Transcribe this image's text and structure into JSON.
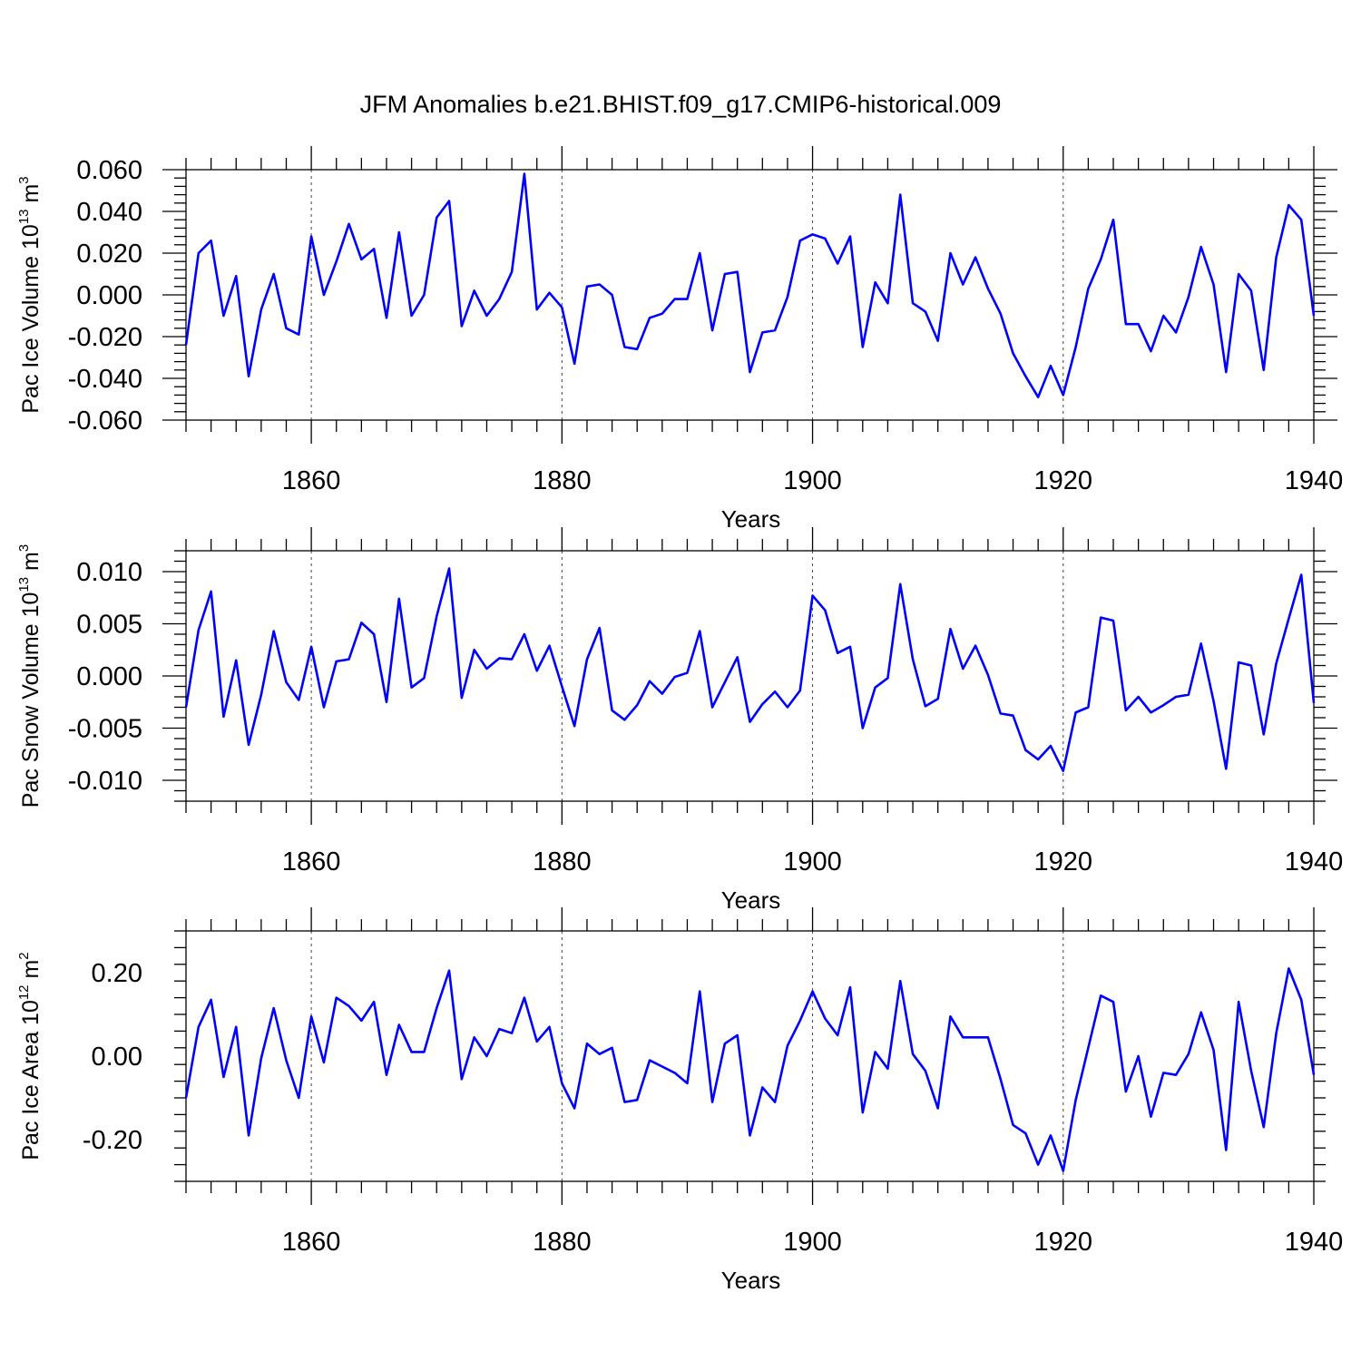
{
  "figure": {
    "title": "JFM Anomalies b.e21.BHIST.f09_g17.CMIP6-historical.009",
    "line_color": "#0000ff"
  },
  "chart_data": [
    {
      "type": "line",
      "name": "Pac Ice Volume",
      "ylabel": {
        "base": "Pac Ice Volume 10",
        "exp": "13",
        "unit": " m",
        "unit_exp": "3"
      },
      "xlabel": "Years",
      "xlim": [
        1850,
        1940
      ],
      "ylim": [
        -0.06,
        0.06
      ],
      "xticks": [
        1860,
        1880,
        1900,
        1920,
        1940
      ],
      "xtick_labels": [
        "1860",
        "1880",
        "1900",
        "1920",
        "1940"
      ],
      "yticks": [
        -0.06,
        -0.04,
        -0.02,
        0.0,
        0.02,
        0.04,
        0.06
      ],
      "ytick_labels": [
        "-0.060",
        "-0.040",
        "-0.020",
        "0.000",
        "0.020",
        "0.040",
        "0.060"
      ],
      "x_start": 1850,
      "values": [
        -0.024,
        0.02,
        0.026,
        -0.01,
        0.009,
        -0.039,
        -0.007,
        0.01,
        -0.016,
        -0.019,
        0.028,
        0.0,
        0.016,
        0.034,
        0.017,
        0.022,
        -0.011,
        0.03,
        -0.01,
        0.0,
        0.037,
        0.045,
        -0.015,
        0.002,
        -0.01,
        -0.002,
        0.011,
        0.058,
        -0.007,
        0.001,
        -0.006,
        -0.033,
        0.004,
        0.005,
        0.0,
        -0.025,
        -0.026,
        -0.011,
        -0.009,
        -0.002,
        -0.002,
        0.02,
        -0.017,
        0.01,
        0.011,
        -0.037,
        -0.018,
        -0.017,
        -0.001,
        0.026,
        0.029,
        0.027,
        0.015,
        0.028,
        -0.025,
        0.006,
        -0.004,
        0.048,
        -0.004,
        -0.008,
        -0.022,
        0.02,
        0.005,
        0.018,
        0.003,
        -0.009,
        -0.028,
        -0.039,
        -0.049,
        -0.034,
        -0.048,
        -0.025,
        0.003,
        0.017,
        0.036,
        -0.014,
        -0.014,
        -0.027,
        -0.01,
        -0.018,
        -0.001,
        0.023,
        0.005,
        -0.037,
        0.01,
        0.002,
        -0.036,
        0.018,
        0.043,
        0.036,
        -0.01
      ]
    },
    {
      "type": "line",
      "name": "Pac Snow Volume",
      "ylabel": {
        "base": "Pac Snow Volume 10",
        "exp": "13",
        "unit": " m",
        "unit_exp": "3"
      },
      "xlabel": "Years",
      "xlim": [
        1850,
        1940
      ],
      "ylim": [
        -0.012,
        0.012
      ],
      "xticks": [
        1860,
        1880,
        1900,
        1920,
        1940
      ],
      "xtick_labels": [
        "1860",
        "1880",
        "1900",
        "1920",
        "1940"
      ],
      "yticks": [
        -0.01,
        -0.005,
        0.0,
        0.005,
        0.01
      ],
      "ytick_labels": [
        "-0.010",
        "-0.005",
        "0.000",
        "0.005",
        "0.010"
      ],
      "x_start": 1850,
      "values": [
        -0.003,
        0.0044,
        0.0081,
        -0.0039,
        0.0015,
        -0.0066,
        -0.0018,
        0.0043,
        -0.0006,
        -0.0023,
        0.0028,
        -0.003,
        0.0014,
        0.0016,
        0.0051,
        0.004,
        -0.0025,
        0.0074,
        -0.0011,
        -0.0002,
        0.0057,
        0.0103,
        -0.0021,
        0.0025,
        0.0007,
        0.0017,
        0.0016,
        0.004,
        0.0005,
        0.0029,
        -0.001,
        -0.0048,
        0.0016,
        0.0046,
        -0.0033,
        -0.0042,
        -0.0028,
        -0.0005,
        -0.0017,
        -0.0001,
        0.0003,
        0.0043,
        -0.003,
        -0.0006,
        0.0018,
        -0.0044,
        -0.0027,
        -0.0015,
        -0.003,
        -0.0014,
        0.0077,
        0.0063,
        0.0022,
        0.0028,
        -0.005,
        -0.0011,
        -0.0002,
        0.0088,
        0.0016,
        -0.0029,
        -0.0022,
        0.0045,
        0.0007,
        0.0029,
        0.0001,
        -0.0036,
        -0.0038,
        -0.0071,
        -0.008,
        -0.0067,
        -0.0091,
        -0.0035,
        -0.003,
        0.0056,
        0.0053,
        -0.0033,
        -0.002,
        -0.0035,
        -0.0028,
        -0.002,
        -0.0018,
        0.0031,
        -0.0024,
        -0.0089,
        0.0013,
        0.001,
        -0.0056,
        0.0012,
        0.0055,
        0.0097,
        -0.0026
      ]
    },
    {
      "type": "line",
      "name": "Pac Ice Area",
      "ylabel": {
        "base": "Pac Ice Area 10",
        "exp": "12",
        "unit": " m",
        "unit_exp": "2"
      },
      "xlabel": "Years",
      "xlim": [
        1850,
        1940
      ],
      "ylim": [
        -0.3,
        0.3
      ],
      "xticks": [
        1860,
        1880,
        1900,
        1920,
        1940
      ],
      "xtick_labels": [
        "1860",
        "1880",
        "1900",
        "1920",
        "1940"
      ],
      "yticks": [
        -0.2,
        0.0,
        0.2
      ],
      "ytick_labels": [
        "-0.20",
        "0.00",
        "0.20"
      ],
      "x_start": 1850,
      "values": [
        -0.1,
        0.07,
        0.135,
        -0.05,
        0.07,
        -0.19,
        -0.005,
        0.115,
        -0.01,
        -0.1,
        0.095,
        -0.015,
        0.14,
        0.12,
        0.085,
        0.13,
        -0.045,
        0.075,
        0.01,
        0.01,
        0.115,
        0.205,
        -0.055,
        0.045,
        0.0,
        0.065,
        0.055,
        0.14,
        0.035,
        0.07,
        -0.065,
        -0.125,
        0.03,
        0.005,
        0.02,
        -0.11,
        -0.105,
        -0.01,
        -0.025,
        -0.04,
        -0.065,
        0.155,
        -0.11,
        0.03,
        0.05,
        -0.19,
        -0.075,
        -0.11,
        0.025,
        0.085,
        0.155,
        0.09,
        0.05,
        0.165,
        -0.135,
        0.01,
        -0.03,
        0.18,
        0.005,
        -0.035,
        -0.125,
        0.095,
        0.045,
        0.045,
        0.045,
        -0.055,
        -0.165,
        -0.185,
        -0.26,
        -0.19,
        -0.275,
        -0.105,
        0.02,
        0.145,
        0.13,
        -0.085,
        0.0,
        -0.145,
        -0.04,
        -0.045,
        0.005,
        0.105,
        0.015,
        -0.225,
        0.13,
        -0.035,
        -0.17,
        0.055,
        0.21,
        0.135,
        -0.045
      ]
    }
  ]
}
